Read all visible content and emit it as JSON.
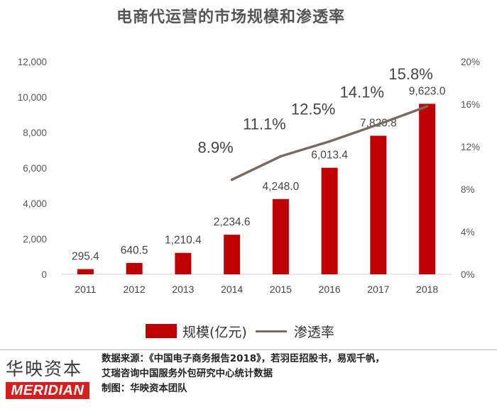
{
  "chart_data": {
    "type": "bar",
    "title": "电商代运营的市场规模和渗透率",
    "categories": [
      "2011",
      "2012",
      "2013",
      "2014",
      "2015",
      "2016",
      "2017",
      "2018"
    ],
    "series": [
      {
        "name": "规模(亿元)",
        "kind": "bar",
        "axis": "left",
        "values": [
          295.4,
          640.5,
          1210.4,
          2234.6,
          4248.0,
          6013.4,
          7820.8,
          9623.0
        ],
        "labels": [
          "295.4",
          "640.5",
          "1,210.4",
          "2,234.6",
          "4,248.0",
          "6,013.4",
          "7,820.8",
          "9,623.0"
        ],
        "color": "#c00000"
      },
      {
        "name": "渗透率",
        "kind": "line",
        "axis": "right",
        "x": [
          "2014",
          "2015",
          "2016",
          "2017",
          "2018"
        ],
        "values": [
          8.9,
          11.1,
          12.5,
          14.1,
          15.8
        ],
        "labels": [
          "8.9%",
          "11.1%",
          "12.5%",
          "14.1%",
          "15.8%"
        ],
        "color": "#7b6a60"
      }
    ],
    "y_left": {
      "ylim": [
        0,
        12000
      ],
      "ticks": [
        0,
        2000,
        4000,
        6000,
        8000,
        10000,
        12000
      ],
      "tick_labels": [
        "0",
        "2,000",
        "4,000",
        "6,000",
        "8,000",
        "10,000",
        "12,000"
      ]
    },
    "y_right": {
      "ylim": [
        0,
        20
      ],
      "ticks": [
        0,
        4,
        8,
        12,
        16,
        20
      ],
      "tick_labels": [
        "0%",
        "4%",
        "8%",
        "12%",
        "16%",
        "20%"
      ]
    },
    "grid": false,
    "legend_position": "bottom"
  },
  "legend": {
    "bar_label": "规模(亿元)",
    "line_label": "渗透率"
  },
  "footer": {
    "brand_cn": "华映资本",
    "brand_en": "MERIDIAN",
    "source_line1": "数据来源：《中国电子商务报告2018》，若羽臣招股书，易观千帆，",
    "source_line2": "艾瑞咨询中国服务外包研究中心统计数据",
    "credit": "制图：华映资本团队"
  }
}
